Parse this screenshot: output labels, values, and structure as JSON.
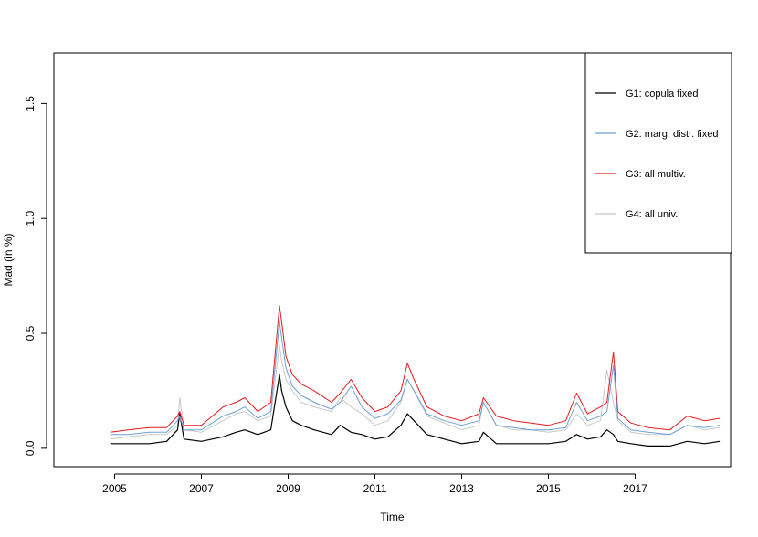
{
  "chart_data": {
    "type": "line",
    "title": "",
    "xlabel": "Time",
    "ylabel": "Mad (in %)",
    "xlim": [
      2003.6,
      2019.2
    ],
    "ylim": [
      -0.08,
      1.72
    ],
    "x_ticks": [
      2005,
      2007,
      2009,
      2011,
      2013,
      2015,
      2017
    ],
    "x_tick_labels": [
      "2005",
      "2007",
      "2009",
      "2011",
      "2013",
      "2015",
      "2017"
    ],
    "y_ticks": [
      0.0,
      0.5,
      1.0,
      1.5
    ],
    "y_tick_labels": [
      "0.0",
      "0.5",
      "1.0",
      "1.5"
    ],
    "legend_position": "top-right",
    "grid": false,
    "series": [
      {
        "name": "G4: all univ.",
        "color": "#c8c8c8",
        "x": [
          2004.9,
          2005.3,
          2005.8,
          2006.2,
          2006.45,
          2006.5,
          2006.6,
          2007.0,
          2007.5,
          2007.8,
          2008.0,
          2008.3,
          2008.6,
          2008.8,
          2008.85,
          2008.95,
          2009.1,
          2009.3,
          2009.6,
          2010.0,
          2010.2,
          2010.45,
          2010.7,
          2011.0,
          2011.3,
          2011.6,
          2011.75,
          2011.9,
          2012.2,
          2012.6,
          2013.0,
          2013.4,
          2013.5,
          2013.8,
          2014.2,
          2014.6,
          2015.0,
          2015.4,
          2015.65,
          2015.9,
          2016.2,
          2016.35,
          2016.5,
          2016.6,
          2016.9,
          2017.3,
          2017.8,
          2018.2,
          2018.6,
          2018.95
        ],
        "values": [
          0.04,
          0.05,
          0.06,
          0.06,
          0.1,
          0.22,
          0.08,
          0.07,
          0.12,
          0.15,
          0.16,
          0.12,
          0.14,
          0.45,
          0.38,
          0.3,
          0.25,
          0.2,
          0.18,
          0.16,
          0.22,
          0.18,
          0.15,
          0.1,
          0.12,
          0.2,
          0.3,
          0.25,
          0.14,
          0.11,
          0.08,
          0.1,
          0.2,
          0.1,
          0.08,
          0.08,
          0.07,
          0.08,
          0.15,
          0.1,
          0.12,
          0.34,
          0.2,
          0.12,
          0.07,
          0.06,
          0.06,
          0.1,
          0.08,
          0.09
        ]
      },
      {
        "name": "G1: copula fixed",
        "color": "#000000",
        "x": [
          2004.9,
          2005.3,
          2005.8,
          2006.2,
          2006.45,
          2006.5,
          2006.6,
          2007.0,
          2007.5,
          2007.8,
          2008.0,
          2008.3,
          2008.6,
          2008.8,
          2008.85,
          2008.95,
          2009.1,
          2009.3,
          2009.6,
          2010.0,
          2010.2,
          2010.45,
          2010.7,
          2011.0,
          2011.3,
          2011.6,
          2011.75,
          2011.9,
          2012.2,
          2012.6,
          2013.0,
          2013.4,
          2013.5,
          2013.8,
          2014.2,
          2014.6,
          2015.0,
          2015.4,
          2015.65,
          2015.9,
          2016.2,
          2016.35,
          2016.5,
          2016.6,
          2016.9,
          2017.3,
          2017.8,
          2018.2,
          2018.6,
          2018.95
        ],
        "values": [
          0.02,
          0.02,
          0.02,
          0.03,
          0.08,
          0.15,
          0.04,
          0.03,
          0.05,
          0.07,
          0.08,
          0.06,
          0.08,
          0.32,
          0.25,
          0.18,
          0.12,
          0.1,
          0.08,
          0.06,
          0.1,
          0.07,
          0.06,
          0.04,
          0.05,
          0.1,
          0.15,
          0.12,
          0.06,
          0.04,
          0.02,
          0.03,
          0.07,
          0.02,
          0.02,
          0.02,
          0.02,
          0.03,
          0.06,
          0.04,
          0.05,
          0.08,
          0.06,
          0.03,
          0.02,
          0.01,
          0.01,
          0.03,
          0.02,
          0.03
        ]
      },
      {
        "name": "G3: all multiv.",
        "color": "#e41a1c",
        "x": [
          2004.9,
          2005.3,
          2005.8,
          2006.2,
          2006.45,
          2006.5,
          2006.6,
          2007.0,
          2007.5,
          2007.8,
          2008.0,
          2008.3,
          2008.6,
          2008.8,
          2008.85,
          2008.95,
          2009.1,
          2009.3,
          2009.6,
          2010.0,
          2010.2,
          2010.45,
          2010.7,
          2011.0,
          2011.3,
          2011.6,
          2011.75,
          2011.9,
          2012.2,
          2012.6,
          2013.0,
          2013.4,
          2013.5,
          2013.8,
          2014.2,
          2014.6,
          2015.0,
          2015.4,
          2015.65,
          2015.9,
          2016.2,
          2016.35,
          2016.5,
          2016.6,
          2016.9,
          2017.3,
          2017.8,
          2018.2,
          2018.6,
          2018.95
        ],
        "values": [
          0.07,
          0.08,
          0.09,
          0.09,
          0.14,
          0.16,
          0.1,
          0.1,
          0.18,
          0.2,
          0.22,
          0.16,
          0.2,
          0.62,
          0.55,
          0.4,
          0.32,
          0.28,
          0.25,
          0.2,
          0.24,
          0.3,
          0.22,
          0.16,
          0.18,
          0.25,
          0.37,
          0.3,
          0.18,
          0.14,
          0.12,
          0.15,
          0.22,
          0.14,
          0.12,
          0.11,
          0.1,
          0.12,
          0.24,
          0.15,
          0.18,
          0.2,
          0.42,
          0.16,
          0.11,
          0.09,
          0.08,
          0.14,
          0.12,
          0.13
        ]
      },
      {
        "name": "G2: marg. distr. fixed",
        "color": "#6fa0d4",
        "x": [
          2004.9,
          2005.3,
          2005.8,
          2006.2,
          2006.45,
          2006.5,
          2006.6,
          2007.0,
          2007.5,
          2007.8,
          2008.0,
          2008.3,
          2008.6,
          2008.8,
          2008.85,
          2008.95,
          2009.1,
          2009.3,
          2009.6,
          2010.0,
          2010.2,
          2010.45,
          2010.7,
          2011.0,
          2011.3,
          2011.6,
          2011.75,
          2011.9,
          2012.2,
          2012.6,
          2013.0,
          2013.4,
          2013.5,
          2013.8,
          2014.2,
          2014.6,
          2015.0,
          2015.4,
          2015.65,
          2015.9,
          2016.2,
          2016.35,
          2016.5,
          2016.6,
          2016.9,
          2017.3,
          2017.8,
          2018.2,
          2018.6,
          2018.95
        ],
        "values": [
          0.06,
          0.06,
          0.07,
          0.07,
          0.12,
          0.14,
          0.08,
          0.08,
          0.14,
          0.16,
          0.18,
          0.13,
          0.16,
          0.55,
          0.48,
          0.35,
          0.27,
          0.23,
          0.2,
          0.17,
          0.2,
          0.27,
          0.18,
          0.13,
          0.15,
          0.21,
          0.3,
          0.25,
          0.15,
          0.12,
          0.1,
          0.12,
          0.2,
          0.1,
          0.09,
          0.08,
          0.08,
          0.09,
          0.2,
          0.12,
          0.14,
          0.16,
          0.36,
          0.13,
          0.08,
          0.07,
          0.06,
          0.1,
          0.09,
          0.1
        ]
      }
    ],
    "legend": [
      {
        "label": "G1: copula fixed",
        "color": "#000000"
      },
      {
        "label": "G2: marg. distr. fixed",
        "color": "#6fa0d4"
      },
      {
        "label": "G3: all multiv.",
        "color": "#e41a1c"
      },
      {
        "label": "G4: all univ.",
        "color": "#c8c8c8"
      }
    ]
  }
}
